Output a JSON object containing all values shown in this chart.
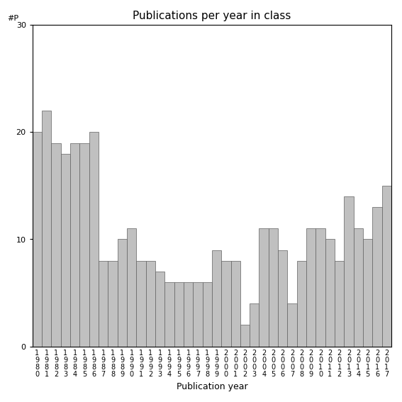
{
  "title": "Publications per year in class",
  "xlabel": "Publication year",
  "ylabel": "#P",
  "years": [
    "1980",
    "1981",
    "1982",
    "1983",
    "1984",
    "1985",
    "1986",
    "1987",
    "1988",
    "1989",
    "1990",
    "1991",
    "1992",
    "1993",
    "1994",
    "1995",
    "1996",
    "1997",
    "1998",
    "1999",
    "2000",
    "2001",
    "2002",
    "2003",
    "2004",
    "2005",
    "2006",
    "2007",
    "2008",
    "2009",
    "2010",
    "2011",
    "2012",
    "2013",
    "2014",
    "2015",
    "2016",
    "2017"
  ],
  "values": [
    20,
    22,
    19,
    18,
    19,
    19,
    20,
    8,
    8,
    10,
    11,
    8,
    8,
    7,
    6,
    6,
    6,
    6,
    6,
    9,
    8,
    8,
    2,
    4,
    11,
    11,
    9,
    4,
    8,
    11,
    11,
    10,
    8,
    14,
    11,
    10,
    13,
    15
  ],
  "bar_color": "#c0c0c0",
  "bar_edgecolor": "#606060",
  "ylim": [
    0,
    30
  ],
  "yticks": [
    0,
    10,
    20,
    30
  ],
  "background_color": "#ffffff",
  "title_fontsize": 11,
  "axis_fontsize": 9,
  "tick_fontsize": 8
}
